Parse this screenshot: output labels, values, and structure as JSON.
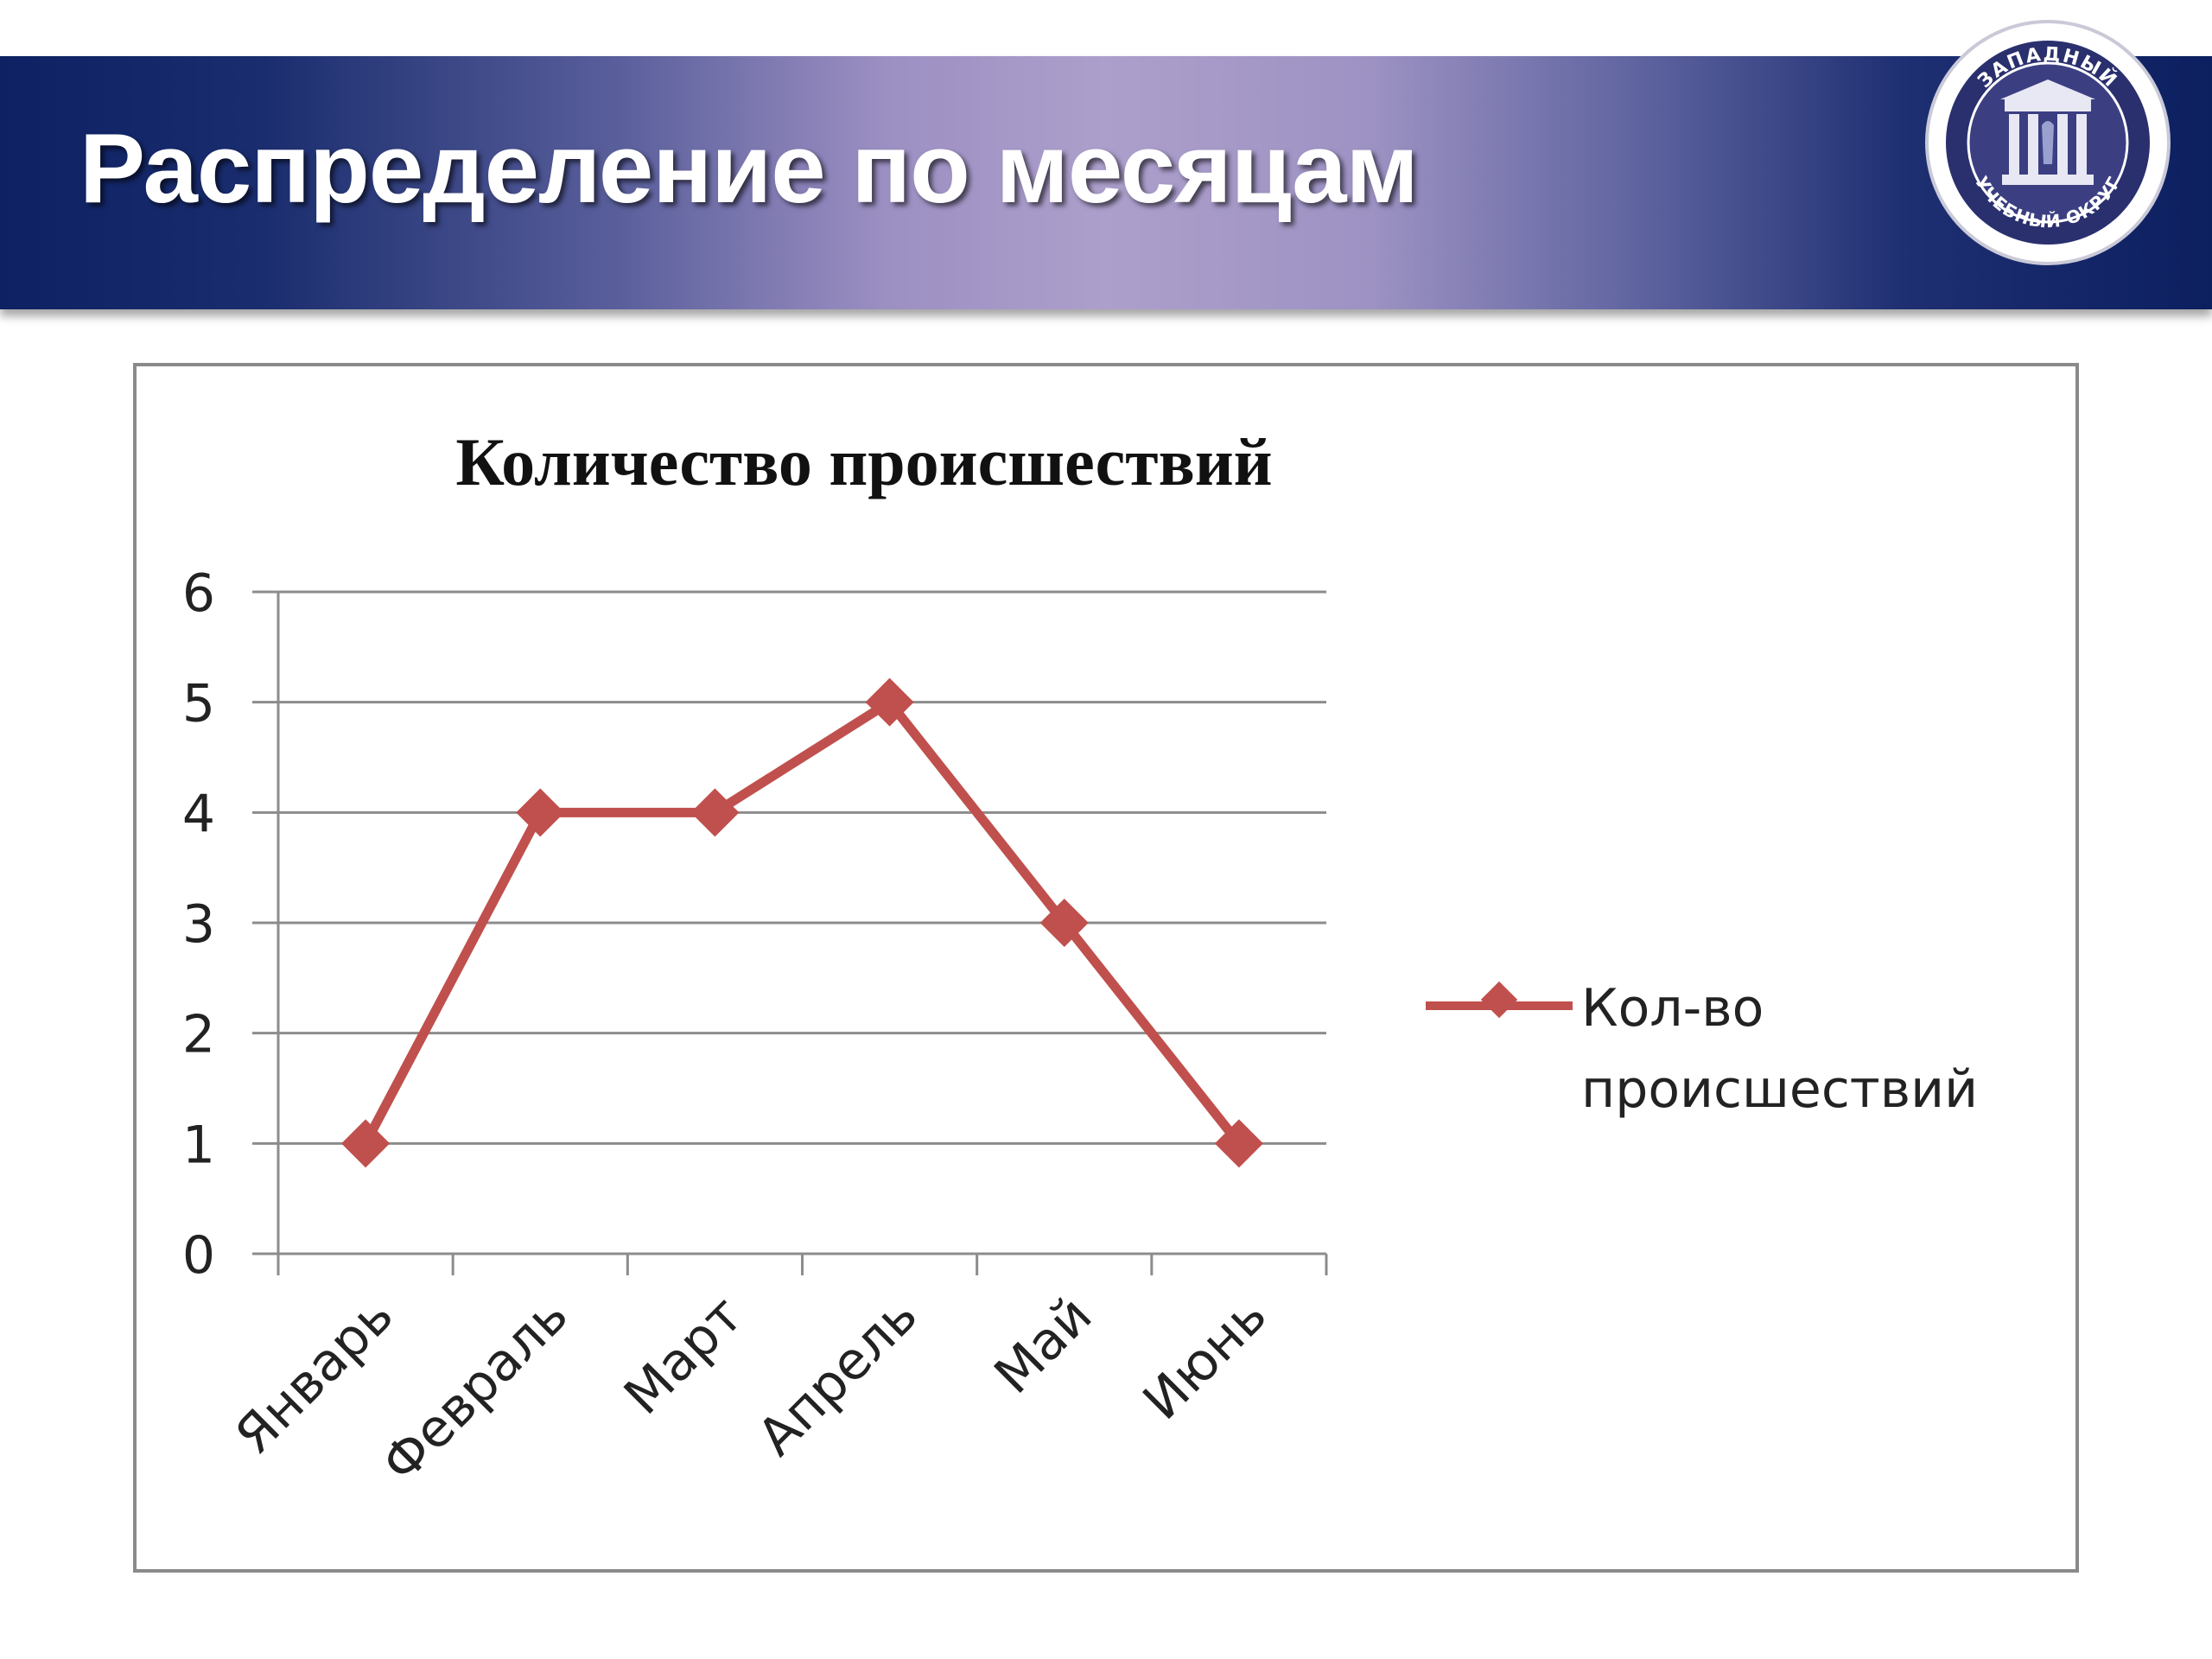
{
  "header": {
    "title": "Распределение по месяцам",
    "emblem_text_top": "ЗАПАДНЫЙ",
    "emblem_text_bottom": "УЧЕБНЫЙ ОКРУГ"
  },
  "colors": {
    "series": "#c0504d",
    "banner_dark": "#0d2163",
    "banner_light": "#ad9fcb"
  },
  "chart_data": {
    "type": "line",
    "title": "Количество происшествий",
    "categories": [
      "Январь",
      "Февраль",
      "Март",
      "Апрель",
      "Май",
      "Июнь"
    ],
    "series": [
      {
        "name": "Кол-во происшествий",
        "values": [
          1,
          4,
          4,
          5,
          3,
          1
        ]
      }
    ],
    "ylim": [
      0,
      6
    ],
    "yticks": [
      0,
      1,
      2,
      3,
      4,
      5,
      6
    ],
    "grid": true,
    "legend": "right",
    "marker": "diamond"
  }
}
